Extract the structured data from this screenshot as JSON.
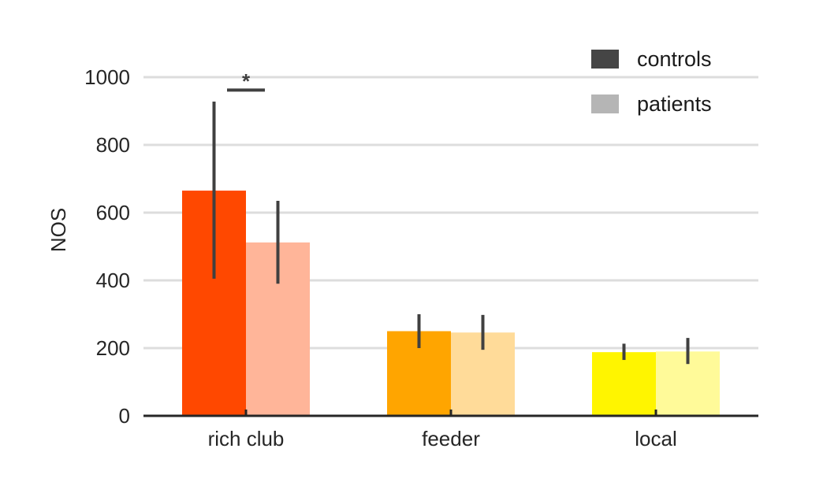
{
  "chart_data": {
    "type": "bar",
    "title": "",
    "xlabel": "",
    "ylabel": "NOS",
    "ylim": [
      0,
      1000
    ],
    "yticks": [
      0,
      200,
      400,
      600,
      800,
      1000
    ],
    "grid": true,
    "legend_position": "top-right",
    "categories": [
      "rich club",
      "feeder",
      "local"
    ],
    "series": [
      {
        "name": "controls",
        "legend_color": "#454545",
        "colors": [
          "#ff4800",
          "#ffa500",
          "#fff500"
        ],
        "values": [
          665,
          250,
          188
        ],
        "error_low": [
          405,
          200,
          165
        ],
        "error_high": [
          928,
          300,
          213
        ]
      },
      {
        "name": "patients",
        "legend_color": "#b5b5b5",
        "colors": [
          "#ffb599",
          "#ffdb99",
          "#fffa99"
        ],
        "values": [
          512,
          246,
          190
        ],
        "error_low": [
          390,
          195,
          153
        ],
        "error_high": [
          635,
          298,
          230
        ]
      }
    ],
    "annotations": [
      {
        "text": "*",
        "category": "rich club",
        "y": 995,
        "bracket_y": 962
      }
    ],
    "colors": {
      "grid": "#dddddd",
      "axis": "#262626",
      "errorbar": "#404040"
    }
  }
}
